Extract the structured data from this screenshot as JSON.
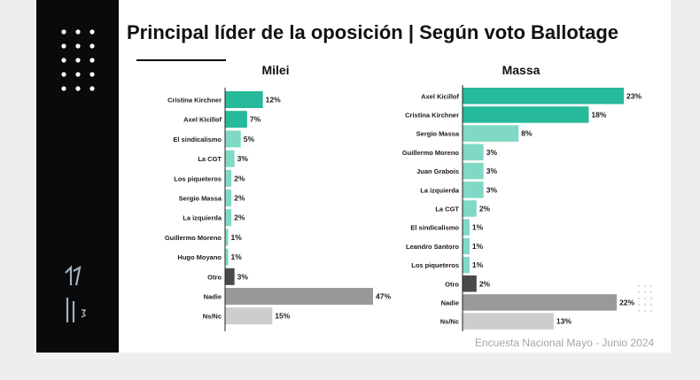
{
  "title": "Principal líder de la oposición | Según voto Ballotage",
  "footer": "Encuesta Nacional Mayo - Junio 2024",
  "colors": {
    "strong": "#26b99a",
    "light": "#7fd9c5",
    "dark": "#4a4a4a",
    "grey": "#9b9898",
    "pale": "#cdcdcd",
    "sidebar": "#0a0a0a"
  },
  "chart_data": [
    {
      "type": "bar",
      "orientation": "horizontal",
      "title": "Milei",
      "categories": [
        "Cristina Kirchner",
        "Axel Kicillof",
        "El sindicalismo",
        "La CGT",
        "Los piqueteros",
        "Sergio Massa",
        "La izquierda",
        "Guillermo Moreno",
        "Hugo Moyano",
        "Otro",
        "Nadie",
        "Ns/Nc"
      ],
      "values": [
        12,
        7,
        5,
        3,
        2,
        2,
        2,
        1,
        1,
        3,
        47,
        15
      ],
      "value_labels": [
        "12%",
        "7%",
        "5%",
        "3%",
        "2%",
        "2%",
        "2%",
        "1%",
        "1%",
        "3%",
        "47%",
        "15%"
      ],
      "bar_colors": [
        "strong",
        "strong",
        "light",
        "light",
        "light",
        "light",
        "light",
        "light",
        "light",
        "dark",
        "grey",
        "pale"
      ],
      "xlim": [
        0,
        47
      ]
    },
    {
      "type": "bar",
      "orientation": "horizontal",
      "title": "Massa",
      "categories": [
        "Axel Kicillof",
        "Cristina Kirchner",
        "Sergio Massa",
        "Guillermo Moreno",
        "Juan Grabois",
        "La izquierda",
        "La CGT",
        "El sindicalismo",
        "Leandro Santoro",
        "Los piqueteros",
        "Otro",
        "Nadie",
        "Ns/Nc"
      ],
      "values": [
        23,
        18,
        8,
        3,
        3,
        3,
        2,
        1,
        1,
        1,
        2,
        22,
        13
      ],
      "value_labels": [
        "23%",
        "18%",
        "8%",
        "3%",
        "3%",
        "3%",
        "2%",
        "1%",
        "1%",
        "1%",
        "2%",
        "22%",
        "13%"
      ],
      "bar_colors": [
        "strong",
        "strong",
        "light",
        "light",
        "light",
        "light",
        "light",
        "light",
        "light",
        "light",
        "dark",
        "grey",
        "pale"
      ],
      "xlim": [
        0,
        23
      ]
    }
  ]
}
